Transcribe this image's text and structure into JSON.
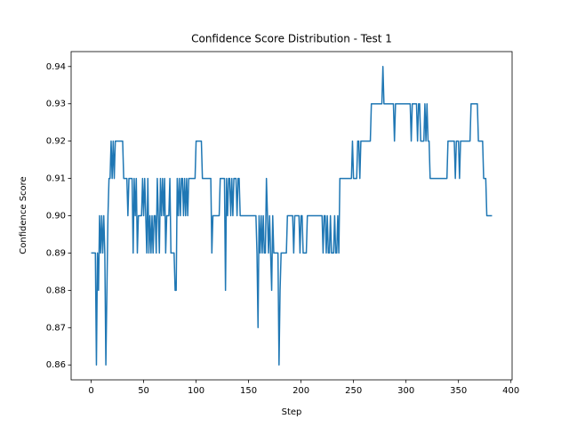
{
  "chart_data": {
    "type": "line",
    "title": "Confidence Score Distribution - Test 1",
    "x_label": "Step",
    "y_label": "Confidence Score",
    "color": "#1f77b4",
    "x": [
      0,
      1,
      2,
      3,
      4,
      5,
      6,
      7,
      8,
      9,
      10,
      11,
      12,
      13,
      14,
      15,
      16,
      17,
      18,
      19,
      20,
      21,
      22,
      23,
      24,
      25,
      26,
      27,
      28,
      29,
      30,
      31,
      32,
      33,
      34,
      35,
      36,
      37,
      38,
      39,
      40,
      41,
      42,
      43,
      44,
      45,
      46,
      47,
      48,
      49,
      50,
      51,
      52,
      53,
      54,
      55,
      56,
      57,
      58,
      59,
      60,
      61,
      62,
      63,
      64,
      65,
      66,
      67,
      68,
      69,
      70,
      71,
      72,
      73,
      74,
      75,
      76,
      77,
      78,
      79,
      80,
      81,
      82,
      83,
      84,
      85,
      86,
      87,
      88,
      89,
      90,
      91,
      92,
      93,
      94,
      95,
      96,
      97,
      98,
      99,
      100,
      101,
      102,
      103,
      104,
      105,
      106,
      107,
      108,
      109,
      110,
      111,
      112,
      113,
      114,
      115,
      116,
      117,
      118,
      119,
      120,
      121,
      122,
      123,
      124,
      125,
      126,
      127,
      128,
      129,
      130,
      131,
      132,
      133,
      134,
      135,
      136,
      137,
      138,
      139,
      140,
      141,
      142,
      143,
      144,
      145,
      146,
      147,
      148,
      149,
      150,
      151,
      152,
      153,
      154,
      155,
      156,
      157,
      158,
      159,
      160,
      161,
      162,
      163,
      164,
      165,
      166,
      167,
      168,
      169,
      170,
      171,
      172,
      173,
      174,
      175,
      176,
      177,
      178,
      179,
      180,
      181,
      182,
      183,
      184,
      185,
      186,
      187,
      188,
      189,
      190,
      191,
      192,
      193,
      194,
      195,
      196,
      197,
      198,
      199,
      200,
      201,
      202,
      203,
      204,
      205,
      206,
      207,
      208,
      209,
      210,
      211,
      212,
      213,
      214,
      215,
      216,
      217,
      218,
      219,
      220,
      221,
      222,
      223,
      224,
      225,
      226,
      227,
      228,
      229,
      230,
      231,
      232,
      233,
      234,
      235,
      236,
      237,
      238,
      239,
      240,
      241,
      242,
      243,
      244,
      245,
      246,
      247,
      248,
      249,
      250,
      251,
      252,
      253,
      254,
      255,
      256,
      257,
      258,
      259,
      260,
      261,
      262,
      263,
      264,
      265,
      266,
      267,
      268,
      269,
      270,
      271,
      272,
      273,
      274,
      275,
      276,
      277,
      278,
      279,
      280,
      281,
      282,
      283,
      284,
      285,
      286,
      287,
      288,
      289,
      290,
      291,
      292,
      293,
      294,
      295,
      296,
      297,
      298,
      299,
      300,
      301,
      302,
      303,
      304,
      305,
      306,
      307,
      308,
      309,
      310,
      311,
      312,
      313,
      314,
      315,
      316,
      317,
      318,
      319,
      320,
      321,
      322,
      323,
      324,
      325,
      326,
      327,
      328,
      329,
      330,
      331,
      332,
      333,
      334,
      335,
      336,
      337,
      338,
      339,
      340,
      341,
      342,
      343,
      344,
      345,
      346,
      347,
      348,
      349,
      350,
      351,
      352,
      353,
      354,
      355,
      356,
      357,
      358,
      359,
      360,
      361,
      362,
      363,
      364,
      365,
      366,
      367,
      368,
      369,
      370,
      371,
      372,
      373,
      374,
      375,
      376,
      377,
      378,
      379,
      380,
      381,
      382
    ],
    "values": [
      0.89,
      0.89,
      0.89,
      0.89,
      0.89,
      0.86,
      0.89,
      0.88,
      0.9,
      0.89,
      0.9,
      0.89,
      0.9,
      0.89,
      0.86,
      0.88,
      0.9,
      0.91,
      0.91,
      0.92,
      0.91,
      0.92,
      0.91,
      0.92,
      0.92,
      0.92,
      0.92,
      0.92,
      0.92,
      0.92,
      0.92,
      0.91,
      0.91,
      0.91,
      0.91,
      0.9,
      0.91,
      0.91,
      0.91,
      0.91,
      0.89,
      0.91,
      0.9,
      0.91,
      0.89,
      0.9,
      0.9,
      0.9,
      0.9,
      0.91,
      0.9,
      0.91,
      0.9,
      0.89,
      0.91,
      0.89,
      0.9,
      0.89,
      0.9,
      0.89,
      0.9,
      0.9,
      0.89,
      0.91,
      0.9,
      0.89,
      0.91,
      0.9,
      0.91,
      0.9,
      0.91,
      0.89,
      0.9,
      0.9,
      0.9,
      0.91,
      0.89,
      0.89,
      0.89,
      0.89,
      0.88,
      0.88,
      0.91,
      0.9,
      0.91,
      0.9,
      0.91,
      0.91,
      0.9,
      0.91,
      0.9,
      0.91,
      0.9,
      0.91,
      0.91,
      0.91,
      0.91,
      0.91,
      0.91,
      0.91,
      0.92,
      0.92,
      0.92,
      0.92,
      0.92,
      0.92,
      0.91,
      0.91,
      0.91,
      0.91,
      0.91,
      0.91,
      0.91,
      0.91,
      0.91,
      0.89,
      0.9,
      0.9,
      0.9,
      0.9,
      0.9,
      0.9,
      0.9,
      0.91,
      0.91,
      0.91,
      0.91,
      0.91,
      0.88,
      0.91,
      0.9,
      0.91,
      0.91,
      0.9,
      0.91,
      0.9,
      0.91,
      0.91,
      0.91,
      0.9,
      0.91,
      0.91,
      0.9,
      0.9,
      0.9,
      0.9,
      0.9,
      0.9,
      0.9,
      0.9,
      0.9,
      0.9,
      0.9,
      0.9,
      0.9,
      0.9,
      0.9,
      0.9,
      0.89,
      0.87,
      0.9,
      0.89,
      0.9,
      0.89,
      0.9,
      0.89,
      0.89,
      0.91,
      0.9,
      0.89,
      0.9,
      0.89,
      0.88,
      0.9,
      0.89,
      0.89,
      0.89,
      0.89,
      0.89,
      0.86,
      0.88,
      0.89,
      0.89,
      0.89,
      0.89,
      0.89,
      0.89,
      0.9,
      0.9,
      0.9,
      0.9,
      0.9,
      0.9,
      0.89,
      0.9,
      0.9,
      0.9,
      0.9,
      0.9,
      0.89,
      0.9,
      0.9,
      0.89,
      0.89,
      0.89,
      0.89,
      0.9,
      0.9,
      0.9,
      0.9,
      0.9,
      0.9,
      0.9,
      0.9,
      0.9,
      0.9,
      0.9,
      0.9,
      0.9,
      0.9,
      0.9,
      0.89,
      0.9,
      0.9,
      0.89,
      0.9,
      0.89,
      0.89,
      0.9,
      0.89,
      0.89,
      0.89,
      0.9,
      0.89,
      0.89,
      0.9,
      0.89,
      0.91,
      0.91,
      0.91,
      0.91,
      0.91,
      0.91,
      0.91,
      0.91,
      0.91,
      0.91,
      0.91,
      0.91,
      0.92,
      0.91,
      0.91,
      0.91,
      0.91,
      0.92,
      0.92,
      0.91,
      0.92,
      0.92,
      0.92,
      0.92,
      0.92,
      0.92,
      0.92,
      0.92,
      0.92,
      0.92,
      0.93,
      0.93,
      0.93,
      0.93,
      0.93,
      0.93,
      0.93,
      0.93,
      0.93,
      0.93,
      0.93,
      0.94,
      0.93,
      0.93,
      0.93,
      0.93,
      0.93,
      0.93,
      0.93,
      0.93,
      0.93,
      0.93,
      0.92,
      0.93,
      0.93,
      0.93,
      0.93,
      0.93,
      0.93,
      0.93,
      0.93,
      0.93,
      0.93,
      0.93,
      0.93,
      0.93,
      0.93,
      0.93,
      0.92,
      0.93,
      0.93,
      0.93,
      0.93,
      0.93,
      0.92,
      0.93,
      0.93,
      0.92,
      0.92,
      0.92,
      0.92,
      0.93,
      0.92,
      0.93,
      0.92,
      0.92,
      0.91,
      0.91,
      0.91,
      0.91,
      0.91,
      0.91,
      0.91,
      0.91,
      0.91,
      0.91,
      0.91,
      0.91,
      0.91,
      0.91,
      0.91,
      0.91,
      0.91,
      0.92,
      0.92,
      0.92,
      0.92,
      0.92,
      0.92,
      0.92,
      0.91,
      0.92,
      0.92,
      0.92,
      0.91,
      0.92,
      0.92,
      0.92,
      0.92,
      0.92,
      0.92,
      0.92,
      0.92,
      0.92,
      0.92,
      0.93,
      0.93,
      0.93,
      0.93,
      0.93,
      0.93,
      0.93,
      0.92,
      0.92,
      0.92,
      0.92,
      0.92,
      0.91,
      0.91,
      0.91,
      0.9,
      0.9,
      0.9,
      0.9,
      0.9,
      0.9
    ],
    "xlim": [
      -19.1,
      401.1
    ],
    "xticks": [
      0,
      50,
      100,
      150,
      200,
      250,
      300,
      350,
      400
    ],
    "ylim": [
      0.856,
      0.944
    ],
    "yticks": [
      0.86,
      0.87,
      0.88,
      0.89,
      {
        "value": 0.9,
        "label": "0.90"
      },
      0.91,
      0.92,
      0.93,
      0.94
    ]
  }
}
